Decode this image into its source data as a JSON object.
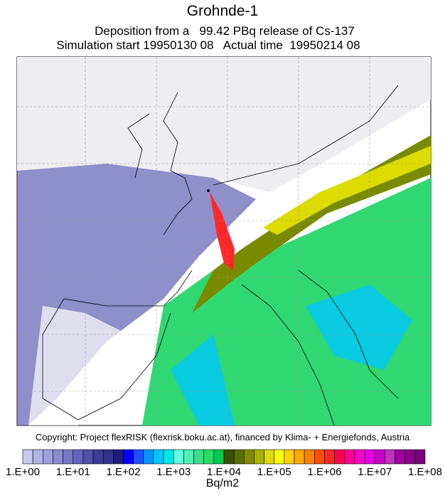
{
  "header": {
    "title": "Grohnde-1",
    "line1": "Deposition from a   99.42 PBq release of Cs-137",
    "line2": "Simulation start 19950130 08   Actual time  19950214 08"
  },
  "copyright": "Copyright: Project flexRISK (flexrisk.boku.ac.at), financed by Klima- + Energiefonds, Austria",
  "colorbar": {
    "unit": "Bq/m2",
    "labels": [
      "1.E+00",
      "1.E+01",
      "1.E+02",
      "1.E+03",
      "1.E+04",
      "1.E+05",
      "1.E+06",
      "1.E+07",
      "1.E+08"
    ],
    "colors": [
      "#c8c8f0",
      "#b4b4e6",
      "#a0a0dc",
      "#8c8cd2",
      "#7878c8",
      "#6464be",
      "#5050aa",
      "#3c3c96",
      "#32328c",
      "#1e1e78",
      "#0000ff",
      "#1e50ff",
      "#0096ff",
      "#00c8ff",
      "#00e6e6",
      "#64ffdc",
      "#50f0b4",
      "#3cdc8c",
      "#28dc64",
      "#00c850",
      "#3c5000",
      "#5a6e00",
      "#828c00",
      "#aab400",
      "#dcdc00",
      "#ffff00",
      "#ffd200",
      "#ffaa00",
      "#ff8200",
      "#ff5000",
      "#ff2828",
      "#ff0050",
      "#ff0096",
      "#ff00c8",
      "#e600e6",
      "#c800c8",
      "#be32be",
      "#a000a0",
      "#8c008c",
      "#780078"
    ]
  }
}
